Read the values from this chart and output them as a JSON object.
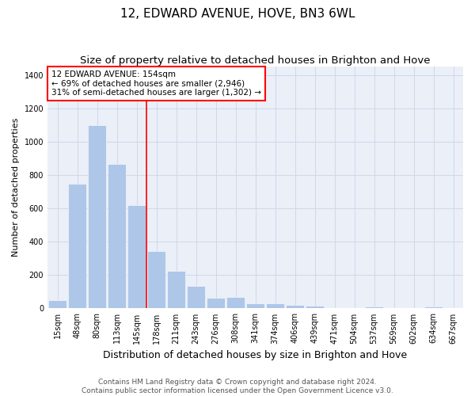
{
  "title": "12, EDWARD AVENUE, HOVE, BN3 6WL",
  "subtitle": "Size of property relative to detached houses in Brighton and Hove",
  "xlabel": "Distribution of detached houses by size in Brighton and Hove",
  "ylabel": "Number of detached properties",
  "footer_line1": "Contains HM Land Registry data © Crown copyright and database right 2024.",
  "footer_line2": "Contains public sector information licensed under the Open Government Licence v3.0.",
  "bar_labels": [
    "15sqm",
    "48sqm",
    "80sqm",
    "113sqm",
    "145sqm",
    "178sqm",
    "211sqm",
    "243sqm",
    "276sqm",
    "308sqm",
    "341sqm",
    "374sqm",
    "406sqm",
    "439sqm",
    "471sqm",
    "504sqm",
    "537sqm",
    "569sqm",
    "602sqm",
    "634sqm",
    "667sqm"
  ],
  "bar_values": [
    50,
    750,
    1100,
    865,
    620,
    345,
    225,
    135,
    65,
    70,
    30,
    30,
    22,
    14,
    0,
    0,
    12,
    0,
    0,
    12,
    0
  ],
  "bar_color": "#aec6e8",
  "vline_x": 4.5,
  "vline_color": "red",
  "annotation_text": "12 EDWARD AVENUE: 154sqm\n← 69% of detached houses are smaller (2,946)\n31% of semi-detached houses are larger (1,302) →",
  "annotation_box_color": "red",
  "ylim": [
    0,
    1450
  ],
  "yticks": [
    0,
    200,
    400,
    600,
    800,
    1000,
    1200,
    1400
  ],
  "grid_color": "#d0d8e8",
  "bg_color": "#eaeff8",
  "title_fontsize": 11,
  "subtitle_fontsize": 9.5,
  "xlabel_fontsize": 9,
  "ylabel_fontsize": 8,
  "tick_fontsize": 7,
  "footer_fontsize": 6.5,
  "annotation_fontsize": 7.5
}
